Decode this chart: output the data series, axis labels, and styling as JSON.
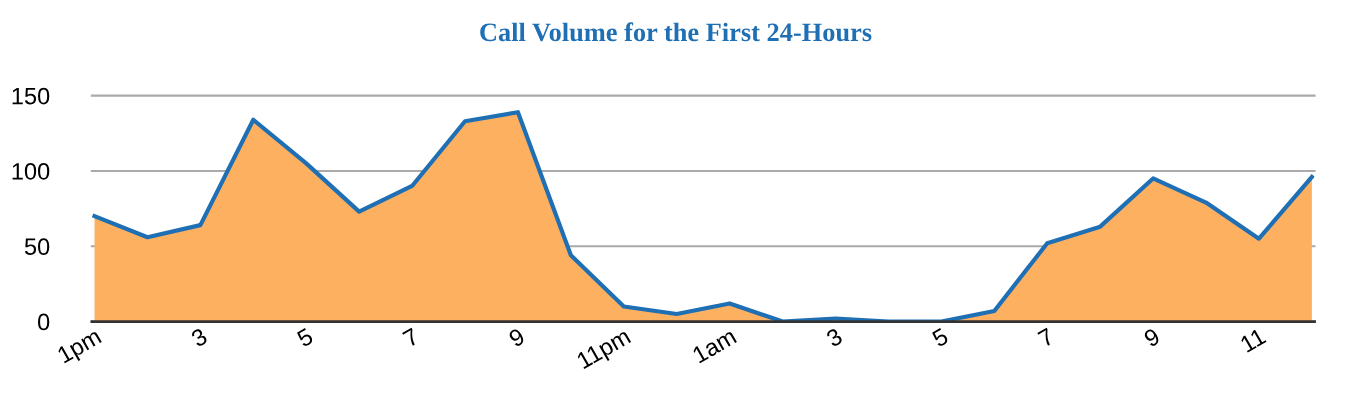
{
  "chart_data": {
    "type": "area",
    "title": "Call Volume for the First 24-Hours",
    "categories": [
      "1pm",
      null,
      "3",
      null,
      "5",
      null,
      "7",
      null,
      "9",
      null,
      "11pm",
      null,
      "1am",
      null,
      "3",
      null,
      "5",
      null,
      "7",
      null,
      "9",
      null,
      "11",
      null
    ],
    "series": [
      {
        "color": "#fdb060",
        "values": [
          70,
          56,
          64,
          134,
          105,
          73,
          90,
          133,
          139,
          44,
          10,
          5,
          12,
          0,
          2,
          0,
          0,
          7,
          52,
          63,
          95,
          79,
          55,
          96
        ]
      }
    ],
    "ylim": [
      0,
      150
    ],
    "yticks": [
      0,
      50,
      100,
      150
    ],
    "grid": "y",
    "legend": false
  }
}
